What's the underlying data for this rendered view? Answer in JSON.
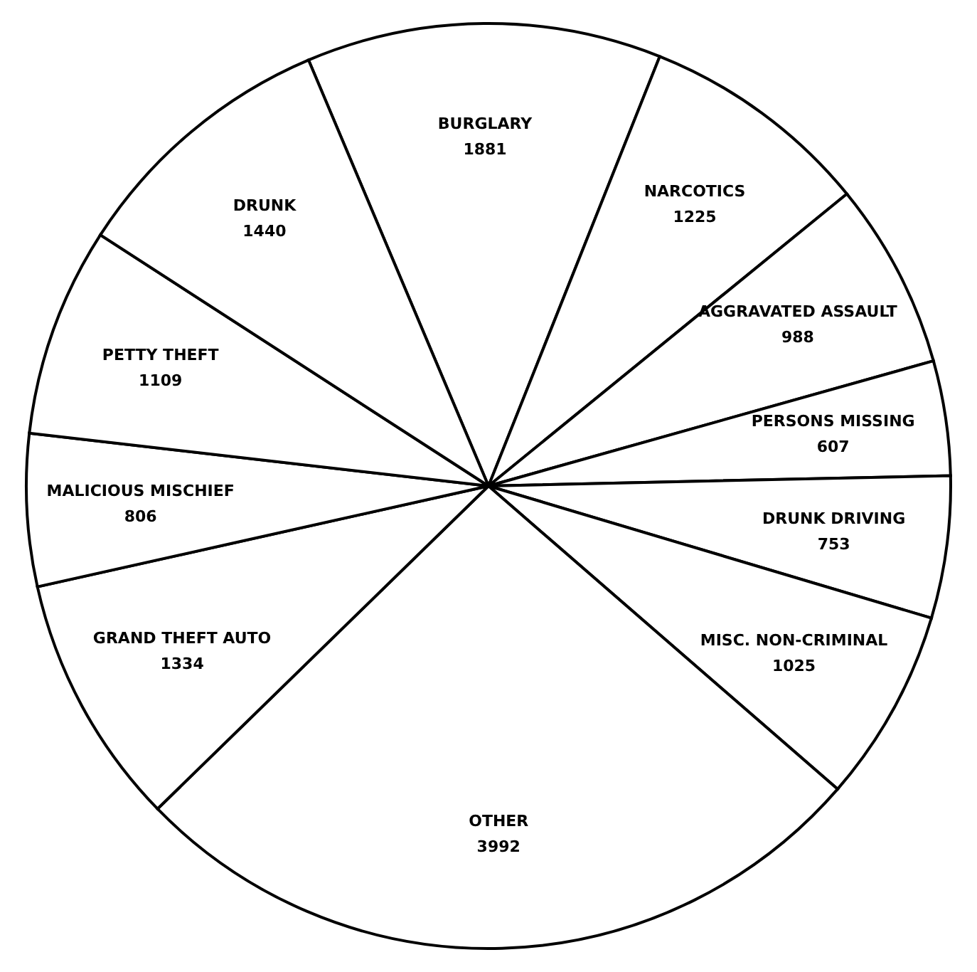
{
  "chart_data": {
    "type": "pie",
    "categories": [
      "BURGLARY",
      "NARCOTICS",
      "AGGRAVATED ASSAULT",
      "PERSONS MISSING",
      "DRUNK DRIVING",
      "MISC. NON-CRIMINAL",
      "OTHER",
      "GRAND THEFT AUTO",
      "MALICIOUS MISCHIEF",
      "PETTY THEFT",
      "DRUNK"
    ],
    "values": [
      1881,
      1225,
      988,
      607,
      753,
      1025,
      3992,
      1334,
      806,
      1109,
      1440
    ],
    "colors": [
      "#ffffff",
      "#ffffff",
      "#ffffff",
      "#ffffff",
      "#ffffff",
      "#ffffff",
      "#ffffff",
      "#ffffff",
      "#ffffff",
      "#ffffff",
      "#ffffff"
    ],
    "data_labels": true
  }
}
